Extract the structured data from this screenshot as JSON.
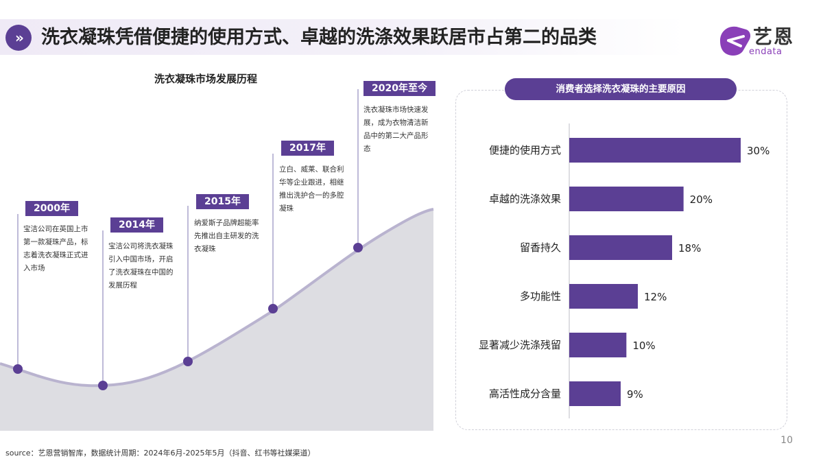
{
  "header": {
    "title": "洗衣凝珠凭借便捷的使用方式、卓越的洗涤效果跃居市占第二的品类",
    "chevron": "»"
  },
  "logo": {
    "name": "艺恩",
    "sub": "endata",
    "icon": "endata-logo-icon",
    "color": "#8a3fb8"
  },
  "timeline": {
    "title": "洗衣凝珠市场发展历程",
    "milestones": [
      {
        "year": "2000年",
        "desc": "宝洁公司在英国上市第一款凝珠产品，标志着洗衣凝珠正式进入市场"
      },
      {
        "year": "2014年",
        "desc": "宝洁公司将洗衣凝珠引入中国市场，开启了洗衣凝珠在中国的发展历程"
      },
      {
        "year": "2015年",
        "desc": "纳爱斯子品牌超能率先推出自主研发的洗衣凝珠"
      },
      {
        "year": "2017年",
        "desc": "立白、威莱、联合利华等企业跟进，相继推出洗护合一的多腔凝珠"
      },
      {
        "year": "2020年至今",
        "desc": "洗衣凝珠市场快速发展，成为衣物清洁新品中的第二大产品形态"
      }
    ]
  },
  "chart_data": {
    "type": "bar",
    "title": "消费者选择洗衣凝珠的主要原因",
    "orientation": "horizontal",
    "categories": [
      "便捷的使用方式",
      "卓越的洗涤效果",
      "留香持久",
      "多功能性",
      "显著减少洗涤残留",
      "高活性成分含量"
    ],
    "values": [
      30,
      20,
      18,
      12,
      10,
      9
    ],
    "value_labels": [
      "30%",
      "20%",
      "18%",
      "12%",
      "10%",
      "9%"
    ],
    "unit": "%",
    "xlim": [
      0,
      30
    ],
    "bar_color": "#5b3f94",
    "grid": false
  },
  "footer": {
    "source": "source：艺恩营销智库，数据统计周期：2024年6月-2025年5月（抖音、红书等社媒渠道）",
    "page_number": "10"
  },
  "colors": {
    "primary": "#5b3f94",
    "curve_fill": "#dddde2",
    "curve_stroke": "#b9b3cf"
  }
}
